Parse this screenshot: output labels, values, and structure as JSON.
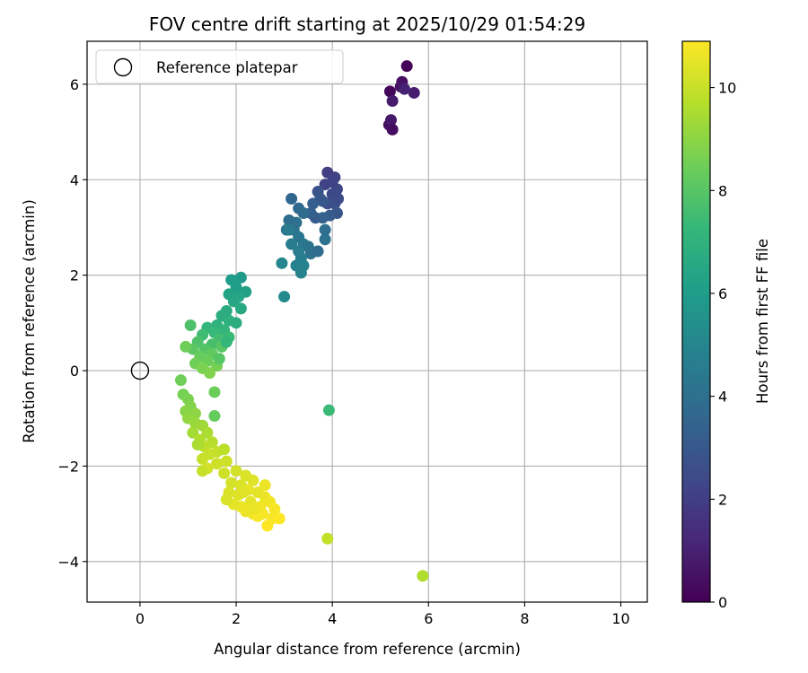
{
  "chart_data": {
    "type": "scatter",
    "title": "FOV centre drift starting at 2025/10/29 01:54:29",
    "xlabel": "Angular distance from reference (arcmin)",
    "ylabel": "Rotation from reference (arcmin)",
    "xlim": [
      -1.1,
      10.55
    ],
    "ylim": [
      -4.85,
      6.9
    ],
    "x_ticks": [
      0,
      2,
      4,
      6,
      8,
      10
    ],
    "y_ticks": [
      -4,
      -2,
      0,
      2,
      4,
      6
    ],
    "grid": true,
    "legend": {
      "position": "top-left",
      "entries": [
        {
          "label": "Reference platepar",
          "marker": "open-circle"
        }
      ]
    },
    "reference_point": {
      "x": 0,
      "y": 0
    },
    "colorbar": {
      "label": "Hours from first FF file",
      "range": [
        0,
        10.9
      ],
      "ticks": [
        0,
        2,
        4,
        6,
        8,
        10
      ],
      "colormap": "viridis",
      "colors": [
        "#440154",
        "#482878",
        "#3e4a89",
        "#31688e",
        "#26828e",
        "#1f9e89",
        "#35b779",
        "#6ece58",
        "#b5de2b",
        "#fde725"
      ]
    },
    "series": [
      {
        "name": "purple cluster",
        "points": [
          [
            5.2,
            5.85
          ],
          [
            5.45,
            6.05
          ],
          [
            5.55,
            6.38
          ],
          [
            5.7,
            5.82
          ],
          [
            5.42,
            5.95
          ],
          [
            5.25,
            5.65
          ],
          [
            5.18,
            5.15
          ],
          [
            5.22,
            5.25
          ],
          [
            5.25,
            5.05
          ],
          [
            5.5,
            5.9
          ]
        ],
        "hours": [
          0.2,
          0.5,
          0.1,
          0.9,
          0.6,
          0.8,
          0.3,
          0.7,
          0.4,
          1.0
        ]
      },
      {
        "name": "blue cluster",
        "points": [
          [
            3.9,
            4.15
          ],
          [
            4.05,
            4.05
          ],
          [
            4.1,
            3.8
          ],
          [
            4.0,
            3.7
          ],
          [
            3.85,
            3.9
          ],
          [
            3.9,
            3.5
          ],
          [
            4.05,
            3.5
          ],
          [
            4.1,
            3.3
          ],
          [
            3.7,
            3.75
          ],
          [
            3.8,
            3.55
          ],
          [
            3.95,
            3.25
          ],
          [
            3.65,
            3.2
          ],
          [
            3.55,
            3.3
          ],
          [
            3.8,
            3.2
          ],
          [
            4.12,
            3.6
          ],
          [
            4.0,
            3.95
          ],
          [
            3.75,
            3.6
          ],
          [
            3.6,
            3.5
          ]
        ],
        "hours": [
          2.0,
          2.1,
          2.3,
          2.4,
          2.2,
          2.6,
          2.7,
          2.9,
          2.8,
          3.0,
          3.1,
          3.2,
          3.3,
          3.4,
          2.5,
          2.2,
          3.0,
          3.3
        ]
      },
      {
        "name": "teal cluster",
        "points": [
          [
            3.15,
            3.6
          ],
          [
            3.3,
            3.4
          ],
          [
            3.4,
            3.3
          ],
          [
            3.1,
            3.15
          ],
          [
            3.25,
            3.1
          ],
          [
            3.2,
            2.95
          ],
          [
            3.05,
            2.95
          ],
          [
            3.3,
            2.8
          ],
          [
            3.4,
            2.65
          ],
          [
            3.15,
            2.65
          ],
          [
            3.3,
            2.5
          ],
          [
            3.55,
            2.45
          ],
          [
            3.7,
            2.5
          ],
          [
            3.5,
            2.6
          ],
          [
            3.85,
            2.95
          ],
          [
            3.85,
            2.75
          ],
          [
            3.35,
            2.35
          ],
          [
            3.25,
            2.2
          ],
          [
            3.4,
            2.2
          ],
          [
            2.95,
            2.25
          ],
          [
            3.0,
            1.55
          ],
          [
            3.1,
            2.95
          ],
          [
            3.35,
            2.05
          ]
        ],
        "hours": [
          3.6,
          3.7,
          3.8,
          3.9,
          4.0,
          4.1,
          4.2,
          4.3,
          4.4,
          4.5,
          4.6,
          4.0,
          3.8,
          4.2,
          3.9,
          4.1,
          4.7,
          4.8,
          4.9,
          5.0,
          5.2,
          4.5,
          4.9
        ]
      },
      {
        "name": "green cluster",
        "points": [
          [
            2.1,
            1.95
          ],
          [
            1.9,
            1.9
          ],
          [
            2.0,
            1.75
          ],
          [
            2.2,
            1.65
          ],
          [
            1.85,
            1.6
          ],
          [
            2.05,
            1.55
          ],
          [
            1.95,
            1.45
          ],
          [
            2.1,
            1.3
          ],
          [
            1.8,
            1.25
          ],
          [
            1.7,
            1.15
          ],
          [
            1.85,
            1.05
          ],
          [
            1.6,
            0.95
          ],
          [
            1.75,
            0.85
          ],
          [
            1.4,
            0.9
          ],
          [
            1.55,
            0.8
          ],
          [
            1.85,
            0.7
          ],
          [
            1.3,
            0.75
          ],
          [
            1.65,
            0.65
          ],
          [
            1.5,
            0.55
          ],
          [
            1.2,
            0.6
          ],
          [
            1.35,
            0.45
          ],
          [
            1.7,
            0.5
          ],
          [
            1.1,
            0.45
          ],
          [
            1.5,
            0.35
          ],
          [
            1.25,
            0.3
          ],
          [
            1.4,
            0.2
          ],
          [
            1.15,
            0.15
          ],
          [
            1.6,
            0.1
          ],
          [
            1.3,
            0.05
          ],
          [
            1.45,
            -0.05
          ],
          [
            1.8,
            0.6
          ],
          [
            1.65,
            0.25
          ],
          [
            1.05,
            0.95
          ],
          [
            0.95,
            0.5
          ],
          [
            1.55,
            -0.45
          ],
          [
            2.0,
            1.0
          ]
        ],
        "hours": [
          5.9,
          6.0,
          6.1,
          6.2,
          6.3,
          6.4,
          6.5,
          6.6,
          6.7,
          6.8,
          6.9,
          7.0,
          7.1,
          7.2,
          7.3,
          7.4,
          7.5,
          7.6,
          7.7,
          7.8,
          7.9,
          8.0,
          8.1,
          8.2,
          8.3,
          8.4,
          8.5,
          8.6,
          8.7,
          8.8,
          7.2,
          8.0,
          7.8,
          8.5,
          8.4,
          6.8
        ]
      },
      {
        "name": "light-green arc",
        "points": [
          [
            0.85,
            -0.2
          ],
          [
            0.9,
            -0.5
          ],
          [
            1.0,
            -0.6
          ],
          [
            1.05,
            -0.75
          ],
          [
            0.95,
            -0.85
          ],
          [
            1.15,
            -0.9
          ],
          [
            1.0,
            -1.0
          ],
          [
            1.15,
            -1.1
          ],
          [
            1.3,
            -1.15
          ],
          [
            1.1,
            -1.3
          ],
          [
            1.4,
            -1.3
          ],
          [
            1.25,
            -1.45
          ],
          [
            1.5,
            -1.5
          ],
          [
            1.55,
            -0.95
          ],
          [
            1.35,
            -1.6
          ],
          [
            1.2,
            -1.55
          ],
          [
            1.6,
            -1.7
          ],
          [
            1.45,
            -1.75
          ],
          [
            1.75,
            -1.65
          ],
          [
            1.3,
            -1.85
          ],
          [
            1.6,
            -1.95
          ],
          [
            1.4,
            -2.05
          ],
          [
            1.8,
            -1.9
          ],
          [
            1.3,
            -2.1
          ]
        ],
        "hours": [
          8.5,
          8.6,
          8.7,
          8.8,
          8.9,
          9.0,
          9.1,
          9.2,
          9.3,
          9.4,
          9.5,
          9.6,
          9.7,
          8.3,
          9.8,
          9.5,
          9.9,
          10.0,
          9.8,
          10.0,
          10.1,
          10.2,
          10.1,
          10.0
        ]
      },
      {
        "name": "yellow cluster",
        "points": [
          [
            1.75,
            -2.15
          ],
          [
            2.0,
            -2.1
          ],
          [
            2.2,
            -2.2
          ],
          [
            1.9,
            -2.35
          ],
          [
            2.1,
            -2.4
          ],
          [
            2.35,
            -2.3
          ],
          [
            1.85,
            -2.55
          ],
          [
            2.05,
            -2.6
          ],
          [
            2.25,
            -2.5
          ],
          [
            2.45,
            -2.55
          ],
          [
            2.6,
            -2.65
          ],
          [
            2.3,
            -2.75
          ],
          [
            2.1,
            -2.85
          ],
          [
            2.5,
            -2.85
          ],
          [
            2.7,
            -2.75
          ],
          [
            2.55,
            -3.0
          ],
          [
            2.75,
            -3.1
          ],
          [
            2.35,
            -3.0
          ],
          [
            2.2,
            -2.95
          ],
          [
            2.65,
            -3.25
          ],
          [
            2.9,
            -3.1
          ],
          [
            2.45,
            -3.05
          ],
          [
            1.95,
            -2.8
          ],
          [
            2.8,
            -2.9
          ],
          [
            2.15,
            -2.55
          ],
          [
            2.4,
            -2.9
          ],
          [
            1.8,
            -2.7
          ],
          [
            2.6,
            -2.4
          ]
        ],
        "hours": [
          10.1,
          10.2,
          10.3,
          10.2,
          10.3,
          10.4,
          10.3,
          10.4,
          10.5,
          10.5,
          10.6,
          10.5,
          10.6,
          10.7,
          10.7,
          10.8,
          10.8,
          10.7,
          10.6,
          10.9,
          10.9,
          10.8,
          10.5,
          10.8,
          10.4,
          10.6,
          10.3,
          10.6
        ]
      },
      {
        "name": "outliers",
        "points": [
          [
            3.93,
            -0.83
          ],
          [
            3.9,
            -3.52
          ],
          [
            5.88,
            -4.3
          ]
        ],
        "hours": [
          7.4,
          9.9,
          9.6
        ]
      }
    ]
  }
}
